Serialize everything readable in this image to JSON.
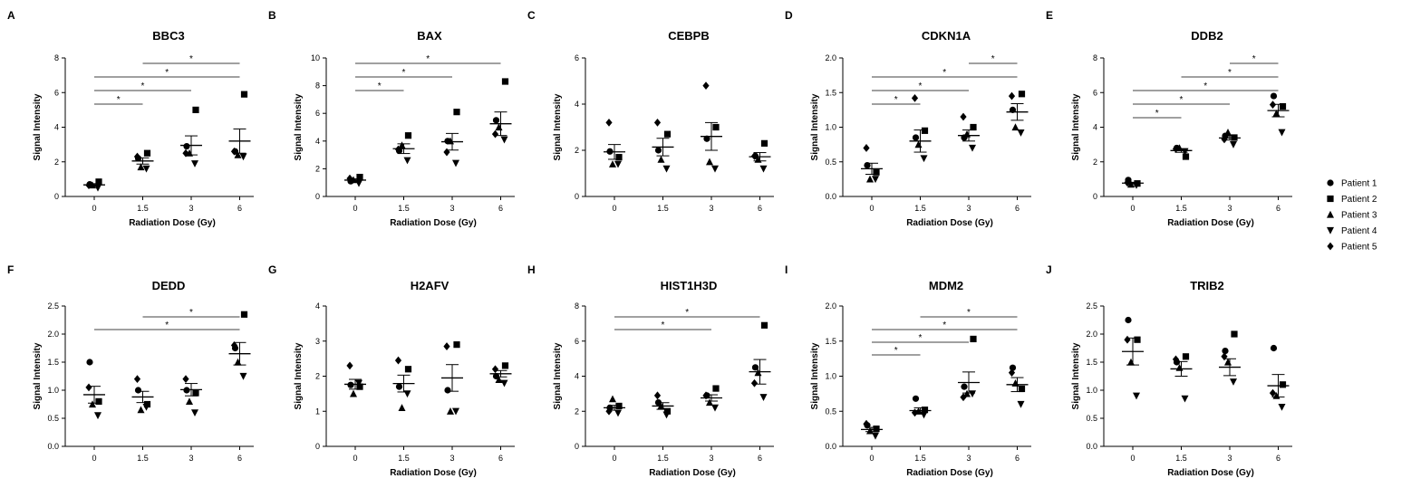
{
  "legend": [
    {
      "name": "Patient 1",
      "marker": "circle"
    },
    {
      "name": "Patient 2",
      "marker": "square"
    },
    {
      "name": "Patient 3",
      "marker": "triangle-up"
    },
    {
      "name": "Patient 4",
      "marker": "triangle-down"
    },
    {
      "name": "Patient 5",
      "marker": "diamond"
    }
  ],
  "chart_data": [
    {
      "type": "scatter",
      "panel": "A",
      "title": "BBC3",
      "xlabel": "Radiation Dose (Gy)",
      "ylabel": "Signal Intensity",
      "categories": [
        "0",
        "1.5",
        "3",
        "6"
      ],
      "ylim": [
        0,
        8
      ],
      "yticks": [
        "0",
        "2",
        "4",
        "6",
        "8"
      ],
      "series": [
        {
          "name": "Patient 1",
          "values": [
            0.7,
            2.2,
            2.9,
            2.6
          ]
        },
        {
          "name": "Patient 2",
          "values": [
            0.85,
            2.5,
            5.0,
            5.9
          ]
        },
        {
          "name": "Patient 3",
          "values": [
            0.65,
            1.7,
            2.5,
            2.4
          ]
        },
        {
          "name": "Patient 4",
          "values": [
            0.5,
            1.6,
            1.9,
            2.3
          ]
        },
        {
          "name": "Patient 5",
          "values": [
            0.65,
            2.3,
            2.5,
            2.6
          ]
        }
      ],
      "means": [
        0.67,
        2.05,
        2.95,
        3.2
      ],
      "sems": [
        0.07,
        0.18,
        0.55,
        0.7
      ],
      "significance": [
        {
          "from": 0,
          "to": 1,
          "label": "*"
        },
        {
          "from": 0,
          "to": 2,
          "label": "*"
        },
        {
          "from": 0,
          "to": 3,
          "label": "*"
        },
        {
          "from": 1,
          "to": 3,
          "label": "*"
        }
      ]
    },
    {
      "type": "scatter",
      "panel": "B",
      "title": "BAX",
      "xlabel": "Radiation Dose (Gy)",
      "ylabel": "Signal Intensity",
      "categories": [
        "0",
        "1.5",
        "3",
        "6"
      ],
      "ylim": [
        0,
        10
      ],
      "yticks": [
        "0",
        "2",
        "4",
        "6",
        "8",
        "10"
      ],
      "series": [
        {
          "name": "Patient 1",
          "values": [
            1.1,
            3.3,
            4.0,
            5.5
          ]
        },
        {
          "name": "Patient 2",
          "values": [
            1.4,
            4.4,
            6.1,
            8.3
          ]
        },
        {
          "name": "Patient 3",
          "values": [
            1.2,
            3.7,
            4.0,
            5.0
          ]
        },
        {
          "name": "Patient 4",
          "values": [
            0.95,
            2.6,
            2.4,
            4.1
          ]
        },
        {
          "name": "Patient 5",
          "values": [
            1.3,
            3.4,
            3.2,
            4.5
          ]
        }
      ],
      "means": [
        1.18,
        3.45,
        3.95,
        5.25
      ],
      "sems": [
        0.09,
        0.35,
        0.6,
        0.85
      ],
      "significance": [
        {
          "from": 0,
          "to": 1,
          "label": "*"
        },
        {
          "from": 0,
          "to": 2,
          "label": "*"
        },
        {
          "from": 0,
          "to": 3,
          "label": "*"
        }
      ]
    },
    {
      "type": "scatter",
      "panel": "C",
      "title": "CEBPB",
      "xlabel": "",
      "ylabel": "Signal Intensity",
      "categories": [
        "0",
        "1.5",
        "3",
        "6"
      ],
      "ylim": [
        0,
        6
      ],
      "yticks": [
        "0",
        "2",
        "4",
        "6"
      ],
      "series": [
        {
          "name": "Patient 1",
          "values": [
            1.95,
            2.0,
            2.5,
            1.75
          ]
        },
        {
          "name": "Patient 2",
          "values": [
            1.7,
            2.7,
            3.0,
            2.3
          ]
        },
        {
          "name": "Patient 3",
          "values": [
            1.4,
            1.6,
            1.5,
            1.6
          ]
        },
        {
          "name": "Patient 4",
          "values": [
            1.4,
            1.2,
            1.2,
            1.2
          ]
        },
        {
          "name": "Patient 5",
          "values": [
            3.2,
            3.2,
            4.8,
            1.75
          ]
        }
      ],
      "means": [
        1.93,
        2.14,
        2.6,
        1.72
      ],
      "sems": [
        0.32,
        0.38,
        0.6,
        0.18
      ],
      "significance": []
    },
    {
      "type": "scatter",
      "panel": "D",
      "title": "CDKN1A",
      "xlabel": "Radiation Dose (Gy)",
      "ylabel": "Signal Intensity",
      "categories": [
        "0",
        "1.5",
        "3",
        "6"
      ],
      "ylim": [
        0,
        2.0
      ],
      "yticks": [
        "0.0",
        "0.5",
        "1.0",
        "1.5",
        "2.0"
      ],
      "series": [
        {
          "name": "Patient 1",
          "values": [
            0.45,
            0.85,
            0.85,
            1.25
          ]
        },
        {
          "name": "Patient 2",
          "values": [
            0.35,
            0.95,
            1.0,
            1.48
          ]
        },
        {
          "name": "Patient 3",
          "values": [
            0.25,
            0.75,
            0.9,
            1.0
          ]
        },
        {
          "name": "Patient 4",
          "values": [
            0.25,
            0.55,
            0.7,
            0.92
          ]
        },
        {
          "name": "Patient 5",
          "values": [
            0.7,
            1.42,
            1.15,
            1.45
          ]
        }
      ],
      "means": [
        0.4,
        0.8,
        0.88,
        1.22
      ],
      "sems": [
        0.08,
        0.16,
        0.08,
        0.12
      ],
      "significance": [
        {
          "from": 0,
          "to": 1,
          "label": "*"
        },
        {
          "from": 0,
          "to": 2,
          "label": "*"
        },
        {
          "from": 0,
          "to": 3,
          "label": "*"
        },
        {
          "from": 2,
          "to": 3,
          "label": "*"
        }
      ]
    },
    {
      "type": "scatter",
      "panel": "E",
      "title": "DDB2",
      "xlabel": "Radiation Dose (Gy)",
      "ylabel": "Signal Intensity",
      "categories": [
        "0",
        "1.5",
        "3",
        "6"
      ],
      "ylim": [
        0,
        8
      ],
      "yticks": [
        "0",
        "2",
        "4",
        "6",
        "8"
      ],
      "series": [
        {
          "name": "Patient 1",
          "values": [
            0.95,
            2.8,
            3.5,
            5.8
          ]
        },
        {
          "name": "Patient 2",
          "values": [
            0.75,
            2.3,
            3.4,
            5.2
          ]
        },
        {
          "name": "Patient 3",
          "values": [
            0.7,
            2.8,
            3.7,
            4.8
          ]
        },
        {
          "name": "Patient 4",
          "values": [
            0.65,
            2.6,
            3.0,
            3.7
          ]
        },
        {
          "name": "Patient 5",
          "values": [
            0.8,
            2.75,
            3.3,
            5.3
          ]
        }
      ],
      "means": [
        0.77,
        2.65,
        3.38,
        4.96
      ],
      "sems": [
        0.05,
        0.1,
        0.12,
        0.36
      ],
      "significance": [
        {
          "from": 0,
          "to": 1,
          "label": "*"
        },
        {
          "from": 0,
          "to": 2,
          "label": "*"
        },
        {
          "from": 0,
          "to": 3,
          "label": "*"
        },
        {
          "from": 1,
          "to": 3,
          "label": "*"
        },
        {
          "from": 2,
          "to": 3,
          "label": "*"
        }
      ]
    },
    {
      "type": "scatter",
      "panel": "F",
      "title": "DEDD",
      "xlabel": "",
      "ylabel": "Signal Intensity",
      "categories": [
        "0",
        "1.5",
        "3",
        "6"
      ],
      "ylim": [
        0,
        2.5
      ],
      "yticks": [
        "0.0",
        "0.5",
        "1.0",
        "1.5",
        "2.0",
        "2.5"
      ],
      "series": [
        {
          "name": "Patient 1",
          "values": [
            1.5,
            1.0,
            1.0,
            1.75
          ]
        },
        {
          "name": "Patient 2",
          "values": [
            0.8,
            0.75,
            0.95,
            2.35
          ]
        },
        {
          "name": "Patient 3",
          "values": [
            0.75,
            0.65,
            0.8,
            1.5
          ]
        },
        {
          "name": "Patient 4",
          "values": [
            0.55,
            0.7,
            0.6,
            1.25
          ]
        },
        {
          "name": "Patient 5",
          "values": [
            1.05,
            1.2,
            1.2,
            1.8
          ]
        }
      ],
      "means": [
        0.92,
        0.88,
        1.01,
        1.65
      ],
      "sems": [
        0.15,
        0.1,
        0.11,
        0.2
      ],
      "significance": [
        {
          "from": 0,
          "to": 3,
          "label": "*"
        },
        {
          "from": 1,
          "to": 3,
          "label": "*"
        }
      ]
    },
    {
      "type": "scatter",
      "panel": "G",
      "title": "H2AFV",
      "xlabel": "Radiation Dose (Gy)",
      "ylabel": "Signal Intensity",
      "categories": [
        "0",
        "1.5",
        "3",
        "6"
      ],
      "ylim": [
        0,
        4
      ],
      "yticks": [
        "0",
        "1",
        "2",
        "3",
        "4"
      ],
      "series": [
        {
          "name": "Patient 1",
          "values": [
            1.75,
            1.7,
            1.6,
            2.0
          ]
        },
        {
          "name": "Patient 2",
          "values": [
            1.7,
            2.2,
            2.9,
            2.3
          ]
        },
        {
          "name": "Patient 3",
          "values": [
            1.5,
            1.1,
            1.0,
            1.9
          ]
        },
        {
          "name": "Patient 4",
          "values": [
            1.8,
            1.5,
            1.0,
            1.8
          ]
        },
        {
          "name": "Patient 5",
          "values": [
            2.3,
            2.45,
            2.85,
            2.2
          ]
        }
      ],
      "means": [
        1.77,
        1.79,
        1.95,
        2.07
      ],
      "sems": [
        0.14,
        0.24,
        0.38,
        0.09
      ],
      "significance": []
    },
    {
      "type": "scatter",
      "panel": "H",
      "title": "HIST1H3D",
      "xlabel": "Radiation Dose (Gy)",
      "ylabel": "Signal Intensity",
      "categories": [
        "0",
        "1.5",
        "3",
        "6"
      ],
      "ylim": [
        0,
        8
      ],
      "yticks": [
        "0",
        "2",
        "4",
        "6",
        "8"
      ],
      "series": [
        {
          "name": "Patient 1",
          "values": [
            2.2,
            2.5,
            2.9,
            4.5
          ]
        },
        {
          "name": "Patient 2",
          "values": [
            2.3,
            2.0,
            3.3,
            6.9
          ]
        },
        {
          "name": "Patient 3",
          "values": [
            2.7,
            2.3,
            2.5,
            4.2
          ]
        },
        {
          "name": "Patient 4",
          "values": [
            1.9,
            1.8,
            2.2,
            2.8
          ]
        },
        {
          "name": "Patient 5",
          "values": [
            2.0,
            2.9,
            2.9,
            3.6
          ]
        }
      ],
      "means": [
        2.2,
        2.3,
        2.76,
        4.25
      ],
      "sems": [
        0.14,
        0.19,
        0.18,
        0.7
      ],
      "significance": [
        {
          "from": 0,
          "to": 2,
          "label": "*"
        },
        {
          "from": 0,
          "to": 3,
          "label": "*"
        }
      ]
    },
    {
      "type": "scatter",
      "panel": "I",
      "title": "MDM2",
      "xlabel": "Radiation Dose (Gy)",
      "ylabel": "Signal Intensity",
      "categories": [
        "0",
        "1.5",
        "3",
        "6"
      ],
      "ylim": [
        0,
        2.0
      ],
      "yticks": [
        "0.0",
        "0.5",
        "1.0",
        "1.5",
        "2.0"
      ],
      "series": [
        {
          "name": "Patient 1",
          "values": [
            0.3,
            0.68,
            0.85,
            1.12
          ]
        },
        {
          "name": "Patient 2",
          "values": [
            0.25,
            0.52,
            1.53,
            0.82
          ]
        },
        {
          "name": "Patient 3",
          "values": [
            0.22,
            0.5,
            0.75,
            0.9
          ]
        },
        {
          "name": "Patient 4",
          "values": [
            0.15,
            0.45,
            0.75,
            0.6
          ]
        },
        {
          "name": "Patient 5",
          "values": [
            0.32,
            0.48,
            0.7,
            1.05
          ]
        }
      ],
      "means": [
        0.24,
        0.51,
        0.91,
        0.88
      ],
      "sems": [
        0.03,
        0.04,
        0.15,
        0.1
      ],
      "significance": [
        {
          "from": 0,
          "to": 1,
          "label": "*"
        },
        {
          "from": 0,
          "to": 2,
          "label": "*"
        },
        {
          "from": 0,
          "to": 3,
          "label": "*"
        },
        {
          "from": 1,
          "to": 3,
          "label": "*"
        }
      ]
    },
    {
      "type": "scatter",
      "panel": "J",
      "title": "TRIB2",
      "xlabel": "Radiation Dose (Gy)",
      "ylabel": "Signal Intensity",
      "categories": [
        "0",
        "1.5",
        "3",
        "6"
      ],
      "ylim": [
        0,
        2.5
      ],
      "yticks": [
        "0.0",
        "0.5",
        "1.0",
        "1.5",
        "2.0",
        "2.5"
      ],
      "series": [
        {
          "name": "Patient 1",
          "values": [
            2.25,
            1.5,
            1.7,
            1.75
          ]
        },
        {
          "name": "Patient 2",
          "values": [
            1.9,
            1.6,
            2.0,
            1.1
          ]
        },
        {
          "name": "Patient 3",
          "values": [
            1.5,
            1.4,
            1.5,
            0.9
          ]
        },
        {
          "name": "Patient 4",
          "values": [
            0.9,
            0.85,
            1.15,
            0.7
          ]
        },
        {
          "name": "Patient 5",
          "values": [
            1.9,
            1.55,
            1.6,
            0.95
          ]
        }
      ],
      "means": [
        1.69,
        1.38,
        1.41,
        1.08
      ],
      "sems": [
        0.24,
        0.13,
        0.15,
        0.2
      ],
      "significance": []
    }
  ]
}
